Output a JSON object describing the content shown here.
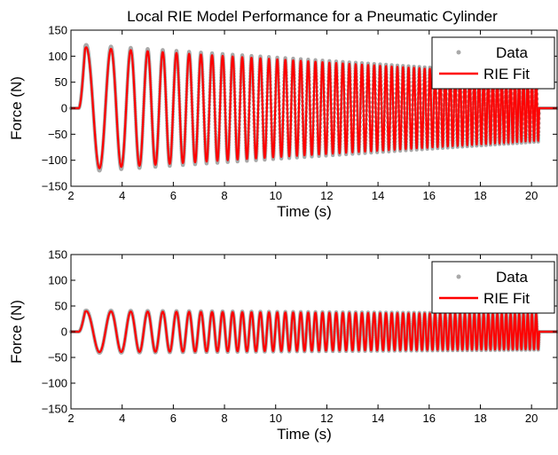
{
  "chart_data": [
    {
      "type": "line",
      "title": "Local RIE Model Performance for a Pneumatic Cylinder",
      "xlabel": "Time (s)",
      "ylabel": "Force (N)",
      "xlim": [
        2,
        21
      ],
      "ylim": [
        -150,
        150
      ],
      "xticks": [
        2,
        4,
        6,
        8,
        10,
        12,
        14,
        16,
        18,
        20
      ],
      "yticks": [
        150,
        100,
        50,
        0,
        -50,
        -100,
        -150
      ],
      "grid": false,
      "legend_position": "top-right",
      "signal": {
        "description_values": {
          "start_time": 2.3,
          "end_time": 20.3,
          "start_frequency_hz": 0.8,
          "end_frequency_hz": 6.2,
          "peak_amplitude_start": 118,
          "amplitude_at_end": 62
        }
      },
      "series": [
        {
          "name": "Data",
          "style": "dots",
          "color": "#a9a9a9"
        },
        {
          "name": "RIE Fit",
          "style": "line",
          "color": "#ff0000"
        }
      ]
    },
    {
      "type": "line",
      "title": "",
      "xlabel": "Time (s)",
      "ylabel": "Force (N)",
      "xlim": [
        2,
        21
      ],
      "ylim": [
        -150,
        150
      ],
      "xticks": [
        2,
        4,
        6,
        8,
        10,
        12,
        14,
        16,
        18,
        20
      ],
      "yticks": [
        150,
        100,
        50,
        0,
        -50,
        -100,
        -150
      ],
      "grid": false,
      "legend_position": "top-right",
      "signal": {
        "description_values": {
          "start_time": 2.3,
          "end_time": 20.3,
          "start_frequency_hz": 0.8,
          "end_frequency_hz": 6.2,
          "peak_amplitude_start": 40,
          "amplitude_at_end": 34
        }
      },
      "series": [
        {
          "name": "Data",
          "style": "dots",
          "color": "#a9a9a9"
        },
        {
          "name": "RIE Fit",
          "style": "line",
          "color": "#ff0000"
        }
      ]
    }
  ]
}
